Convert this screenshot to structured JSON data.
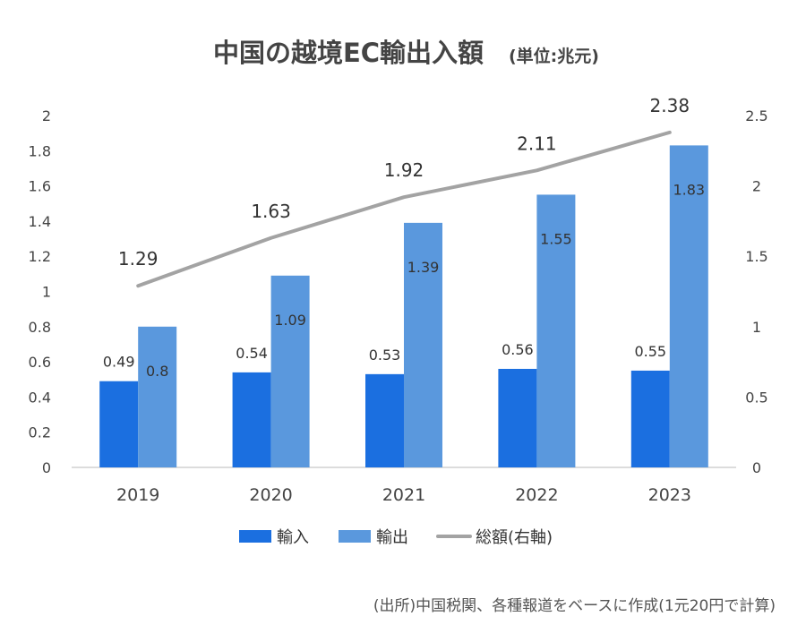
{
  "chart_data": {
    "type": "bar",
    "title": "中国の越境EC輸出入額",
    "unit_label": "(単位:兆元)",
    "categories": [
      "2019",
      "2020",
      "2021",
      "2022",
      "2023"
    ],
    "series": [
      {
        "name": "輸入",
        "type": "bar",
        "axis": "left",
        "color": "#1b6fe0",
        "values": [
          0.49,
          0.54,
          0.53,
          0.56,
          0.55
        ],
        "labels": [
          "0.49",
          "0.54",
          "0.53",
          "0.56",
          "0.55"
        ]
      },
      {
        "name": "輸出",
        "type": "bar",
        "axis": "left",
        "color": "#5a98dd",
        "values": [
          0.8,
          1.09,
          1.39,
          1.55,
          1.83
        ],
        "labels": [
          "0.8",
          "1.09",
          "1.39",
          "1.55",
          "1.83"
        ]
      },
      {
        "name": "総額(右軸)",
        "type": "line",
        "axis": "right",
        "color": "#a3a3a3",
        "values": [
          1.29,
          1.63,
          1.92,
          2.11,
          2.38
        ],
        "labels": [
          "1.29",
          "1.63",
          "1.92",
          "2.11",
          "2.38"
        ]
      }
    ],
    "left_axis": {
      "ylim": [
        0,
        2
      ],
      "ticks": [
        0,
        0.2,
        0.4,
        0.6,
        0.8,
        1,
        1.2,
        1.4,
        1.6,
        1.8,
        2
      ],
      "tick_labels": [
        "0",
        "0.2",
        "0.4",
        "0.6",
        "0.8",
        "1",
        "1.2",
        "1.4",
        "1.6",
        "1.8",
        "2"
      ]
    },
    "right_axis": {
      "ylim": [
        0,
        2.5
      ],
      "ticks": [
        0,
        0.5,
        1,
        1.5,
        2,
        2.5
      ],
      "tick_labels": [
        "0",
        "0.5",
        "1",
        "1.5",
        "2",
        "2.5"
      ]
    },
    "legend_position": "bottom",
    "grid": false,
    "source_note": "(出所)中国税関、各種報道をベースに作成(1元20円で計算)"
  }
}
